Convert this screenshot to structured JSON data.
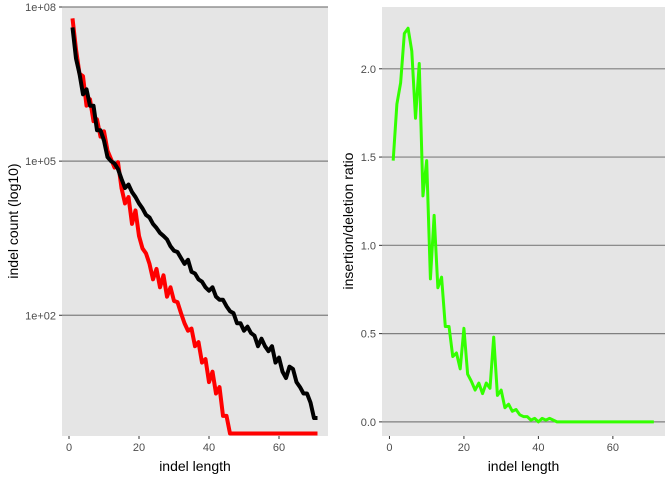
{
  "colors": {
    "panel_background": "#e5e5e5",
    "gridline": "#7f7f7f",
    "tick_text": "#4d4d4d",
    "axis_title": "#000000"
  },
  "chart_data": [
    {
      "type": "line",
      "title": "",
      "xlabel": "indel length",
      "ylabel": "indel count (log10)",
      "xlim": [
        -2,
        74
      ],
      "ylim_log10": [
        -0.35,
        8.0
      ],
      "x_ticks": [
        0,
        20,
        40,
        60
      ],
      "x_tick_labels": [
        "0",
        "20",
        "40",
        "60"
      ],
      "y_scale": "log10",
      "y_ticks_log10": [
        2,
        5,
        8
      ],
      "y_tick_labels": [
        "1e+02",
        "1e+05",
        "1e+08"
      ],
      "grid": "major y only",
      "legend": "none",
      "series": [
        {
          "color": "#ff0000",
          "x": [
            1,
            2,
            3,
            4,
            5,
            6,
            7,
            8,
            9,
            10,
            11,
            12,
            13,
            14,
            15,
            16,
            17,
            18,
            19,
            20,
            21,
            22,
            23,
            24,
            25,
            26,
            27,
            28,
            29,
            30,
            31,
            32,
            33,
            34,
            35,
            36,
            37,
            38,
            39,
            40,
            41,
            42,
            43,
            44,
            45,
            46,
            47,
            48,
            49,
            50,
            51,
            52,
            53,
            54,
            55,
            56,
            57,
            58,
            59,
            60,
            61,
            62,
            63,
            64,
            65,
            66,
            67,
            68,
            69,
            70,
            71
          ],
          "y": [
            60000000.0,
            15000000.0,
            5000000.0,
            4500000.0,
            1200000.0,
            1600000.0,
            600000.0,
            650000.0,
            300000.0,
            380000.0,
            160000.0,
            110000.0,
            75000.0,
            95000.0,
            30000.0,
            15000.0,
            20000.0,
            6000.0,
            11000.0,
            3500.0,
            2000.0,
            1600.0,
            1000.0,
            500.0,
            800.0,
            350.0,
            600.0,
            230.0,
            350.0,
            190.0,
            180.0,
            110.0,
            70,
            50,
            55,
            25,
            30,
            12,
            14,
            5.0,
            8.0,
            3.0,
            4.0,
            1.1,
            1.1,
            0.5,
            0.5,
            0.5,
            0.5,
            0.5,
            0.5,
            0.5,
            0.5,
            0.5,
            0.5,
            0.5,
            0.5,
            0.5,
            0.5,
            0.5,
            0.5,
            0.5,
            0.5,
            0.5,
            0.5,
            0.5,
            0.5,
            0.5,
            0.5,
            0.5,
            0.5
          ]
        },
        {
          "color": "#000000",
          "x": [
            1,
            2,
            3,
            4,
            5,
            6,
            7,
            8,
            9,
            10,
            11,
            12,
            13,
            14,
            15,
            16,
            17,
            18,
            19,
            20,
            21,
            22,
            23,
            24,
            25,
            26,
            27,
            28,
            29,
            30,
            31,
            32,
            33,
            34,
            35,
            36,
            37,
            38,
            39,
            40,
            41,
            42,
            43,
            44,
            45,
            46,
            47,
            48,
            49,
            50,
            51,
            52,
            53,
            54,
            55,
            56,
            57,
            58,
            59,
            60,
            61,
            62,
            63,
            64,
            65,
            66,
            67,
            68,
            69,
            70,
            71
          ],
          "y": [
            40000000.0,
            10000000.0,
            5000000.0,
            2000000.0,
            2500000.0,
            1200000.0,
            1200000.0,
            400000.0,
            400000.0,
            250000.0,
            120000.0,
            100000.0,
            90000.0,
            70000.0,
            45000.0,
            30000.0,
            35000.0,
            25000.0,
            20000.0,
            15000.0,
            12000.0,
            9000.0,
            8000.0,
            6000.0,
            5000.0,
            4000.0,
            3500.0,
            3000.0,
            2200.0,
            1800.0,
            1700.0,
            1300.0,
            1000.0,
            1200.0,
            700.0,
            650.0,
            500.0,
            450.0,
            350.0,
            300.0,
            350.0,
            230.0,
            200.0,
            200.0,
            150.0,
            120.0,
            110.0,
            70,
            70,
            50,
            60,
            45,
            40,
            25,
            35,
            25,
            20,
            25,
            12,
            15,
            8,
            6,
            10,
            9,
            5,
            4,
            3,
            3,
            2,
            1.0,
            1.0
          ]
        }
      ]
    },
    {
      "type": "line",
      "title": "",
      "xlabel": "indel length",
      "ylabel": "insertion/deletion ratio",
      "xlim": [
        -2,
        74
      ],
      "ylim": [
        -0.08,
        2.35
      ],
      "x_ticks": [
        0,
        20,
        40,
        60
      ],
      "x_tick_labels": [
        "0",
        "20",
        "40",
        "60"
      ],
      "y_ticks": [
        0.0,
        0.5,
        1.0,
        1.5,
        2.0
      ],
      "y_tick_labels": [
        "0.0",
        "0.5",
        "1.0",
        "1.5",
        "2.0"
      ],
      "grid": "major y only",
      "legend": "none",
      "series": [
        {
          "color": "#33ff00",
          "x": [
            1,
            2,
            3,
            4,
            5,
            6,
            7,
            8,
            9,
            10,
            11,
            12,
            13,
            14,
            15,
            16,
            17,
            18,
            19,
            20,
            21,
            22,
            23,
            24,
            25,
            26,
            27,
            28,
            29,
            30,
            31,
            32,
            33,
            34,
            35,
            36,
            37,
            38,
            39,
            40,
            41,
            42,
            43,
            44,
            45,
            46,
            47,
            48,
            49,
            50,
            51,
            52,
            53,
            54,
            55,
            56,
            57,
            58,
            59,
            60,
            61,
            62,
            63,
            64,
            65,
            66,
            67,
            68,
            69,
            70,
            71
          ],
          "y": [
            1.48,
            1.8,
            1.92,
            2.2,
            2.23,
            2.1,
            1.72,
            2.03,
            1.28,
            1.48,
            0.81,
            1.17,
            0.76,
            0.82,
            0.54,
            0.54,
            0.37,
            0.39,
            0.3,
            0.53,
            0.27,
            0.23,
            0.18,
            0.22,
            0.16,
            0.22,
            0.19,
            0.48,
            0.15,
            0.18,
            0.08,
            0.1,
            0.06,
            0.07,
            0.04,
            0.03,
            0.03,
            0.01,
            0.02,
            0.0,
            0.02,
            0.01,
            0.02,
            0.01,
            0.0,
            0.0,
            0.0,
            0.0,
            0.0,
            0.0,
            0.0,
            0.0,
            0.0,
            0.0,
            0.0,
            0.0,
            0.0,
            0.0,
            0.0,
            0.0,
            0.0,
            0.0,
            0.0,
            0.0,
            0.0,
            0.0,
            0.0,
            0.0,
            0.0,
            0.0,
            0.0
          ]
        }
      ]
    }
  ]
}
